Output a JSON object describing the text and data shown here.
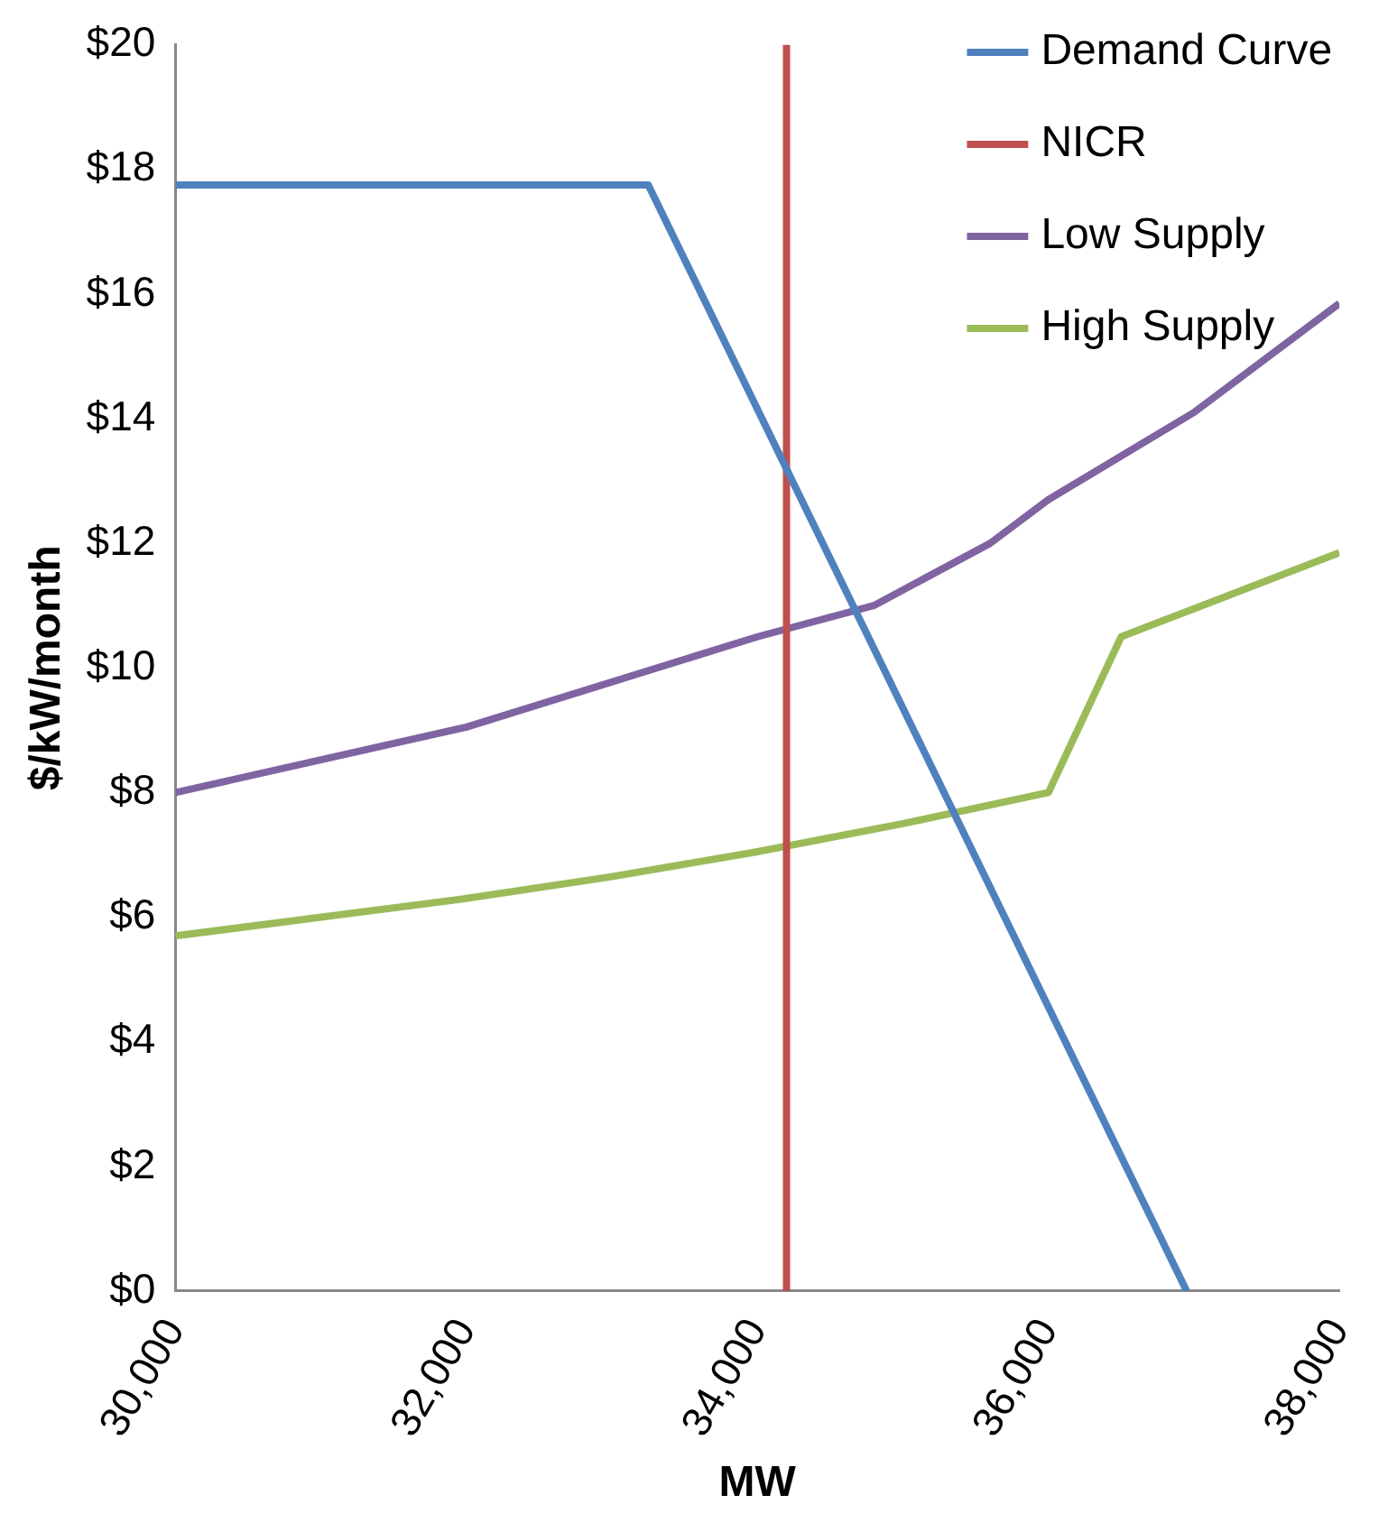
{
  "chart_data": {
    "type": "line",
    "xlabel": "MW",
    "ylabel": "$/kW/month",
    "xlim": [
      30000,
      38000
    ],
    "xticks": [
      {
        "value": 30000,
        "label": "30,000"
      },
      {
        "value": 32000,
        "label": "32,000"
      },
      {
        "value": 34000,
        "label": "34,000"
      },
      {
        "value": 36000,
        "label": "36,000"
      },
      {
        "value": 38000,
        "label": "38,000"
      }
    ],
    "ylim": [
      0,
      20
    ],
    "yticks": [
      {
        "value": 0,
        "label": "$0"
      },
      {
        "value": 2,
        "label": "$2"
      },
      {
        "value": 4,
        "label": "$4"
      },
      {
        "value": 6,
        "label": "$6"
      },
      {
        "value": 8,
        "label": "$8"
      },
      {
        "value": 10,
        "label": "$10"
      },
      {
        "value": 12,
        "label": "$12"
      },
      {
        "value": 14,
        "label": "$14"
      },
      {
        "value": 16,
        "label": "$16"
      },
      {
        "value": 18,
        "label": "$18"
      },
      {
        "value": 20,
        "label": "$20"
      }
    ],
    "grid": false,
    "legend": "top right",
    "marker": "none",
    "line_style": "solid",
    "series": [
      {
        "name": "Demand Curve",
        "color": "#4f81bd",
        "x": [
          30000,
          33250,
          36950
        ],
        "values": [
          17.75,
          17.75,
          0
        ]
      },
      {
        "name": "NICR",
        "color": "#c0504d",
        "x": [
          34200,
          34200
        ],
        "values": [
          0,
          20
        ]
      },
      {
        "name": "Low Supply",
        "color": "#8064a2",
        "x": [
          30000,
          32000,
          34000,
          34800,
          35600,
          36000,
          37000,
          38000
        ],
        "values": [
          8,
          9.05,
          10.5,
          11,
          12,
          12.7,
          14.1,
          15.85
        ]
      },
      {
        "name": "High Supply",
        "color": "#9bbb59",
        "x": [
          30000,
          32000,
          33000,
          34000,
          35000,
          36000,
          36500,
          37000,
          38000
        ],
        "values": [
          5.7,
          6.3,
          6.65,
          7.05,
          7.5,
          8,
          10.5,
          10.95,
          11.85
        ]
      }
    ]
  }
}
